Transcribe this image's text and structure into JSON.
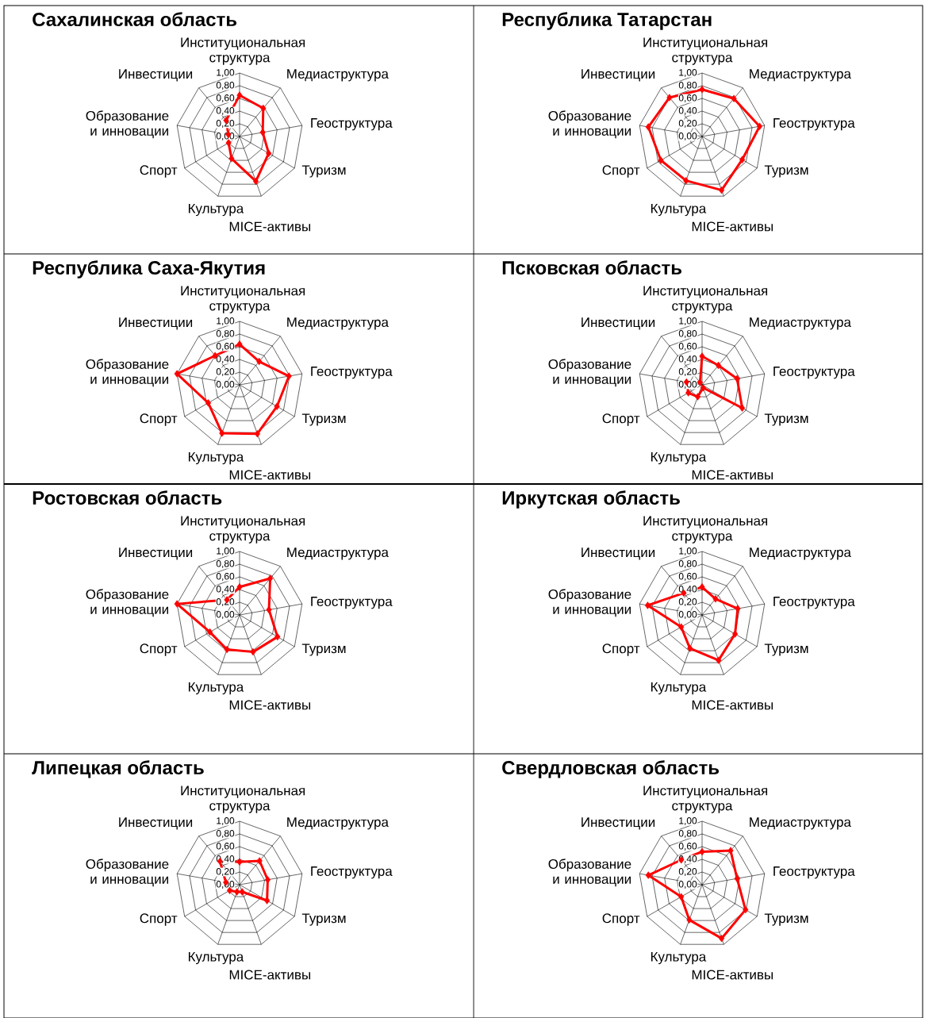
{
  "chart_data": [
    {
      "type": "radar",
      "title": "Сахалинская область",
      "categories": [
        "Институциональная структура",
        "Медиаструктура",
        "Геоструктура",
        "Туризм",
        "MICE-активы",
        "Культура",
        "Спорт",
        "Образование и инновации",
        "Инвестиции"
      ],
      "series": [
        {
          "color": "#ff0000",
          "values": [
            0.65,
            0.58,
            0.37,
            0.53,
            0.75,
            0.37,
            0.2,
            0.18,
            0.33
          ]
        }
      ],
      "ylim": [
        0,
        1
      ],
      "yticks": [
        {
          "value": 0,
          "label": "0,00"
        },
        {
          "value": 0.2,
          "label": "0,20"
        },
        {
          "value": 0.4,
          "label": "0,40"
        },
        {
          "value": 0.6,
          "label": "0,60"
        },
        {
          "value": 0.8,
          "label": "0,80"
        },
        {
          "value": 1,
          "label": "1,00"
        }
      ],
      "grid": true,
      "marker": "diamond"
    },
    {
      "type": "radar",
      "title": "Республика Татарстан",
      "categories": [
        "Институциональная структура",
        "Медиаструктура",
        "Геоструктура",
        "Туризм",
        "MICE-активы",
        "Культура",
        "Спорт",
        "Образование и инновации",
        "Инвестиции"
      ],
      "series": [
        {
          "color": "#ff0000",
          "values": [
            0.74,
            0.78,
            0.92,
            0.73,
            0.9,
            0.74,
            0.75,
            0.86,
            0.8
          ]
        }
      ],
      "ylim": [
        0,
        1
      ],
      "yticks": [
        {
          "value": 0,
          "label": "0,00"
        },
        {
          "value": 0.2,
          "label": "0,20"
        },
        {
          "value": 0.4,
          "label": "0,40"
        },
        {
          "value": 0.6,
          "label": "0,60"
        },
        {
          "value": 0.8,
          "label": "0,80"
        },
        {
          "value": 1,
          "label": "1,00"
        }
      ],
      "grid": true,
      "marker": "diamond"
    },
    {
      "type": "radar",
      "title": "Республика Саха-Якутия",
      "categories": [
        "Институциональная структура",
        "Медиаструктура",
        "Геоструктура",
        "Туризм",
        "MICE-активы",
        "Культура",
        "Спорт",
        "Образование и инновации",
        "Инвестиции"
      ],
      "series": [
        {
          "color": "#ff0000",
          "values": [
            0.64,
            0.48,
            0.79,
            0.68,
            0.82,
            0.81,
            0.57,
            1.0,
            0.6
          ]
        }
      ],
      "ylim": [
        0,
        1
      ],
      "yticks": [
        {
          "value": 0,
          "label": "0,00"
        },
        {
          "value": 0.2,
          "label": "0,20"
        },
        {
          "value": 0.4,
          "label": "0,40"
        },
        {
          "value": 0.6,
          "label": "0,60"
        },
        {
          "value": 0.8,
          "label": "0,80"
        },
        {
          "value": 1,
          "label": "1,00"
        }
      ],
      "grid": true,
      "marker": "diamond"
    },
    {
      "type": "radar",
      "title": "Псковская область",
      "categories": [
        "Институциональная структура",
        "Медиаструктура",
        "Геоструктура",
        "Туризм",
        "MICE-активы",
        "Культура",
        "Спорт",
        "Образование и инновации",
        "Инвестиции"
      ],
      "series": [
        {
          "color": "#ff0000",
          "values": [
            0.45,
            0.4,
            0.56,
            0.73,
            0.05,
            0.2,
            0.25,
            0.25,
            0.05
          ]
        }
      ],
      "ylim": [
        0,
        1
      ],
      "yticks": [
        {
          "value": 0,
          "label": "0,00"
        },
        {
          "value": 0.2,
          "label": "0,20"
        },
        {
          "value": 0.4,
          "label": "0,40"
        },
        {
          "value": 0.6,
          "label": "0,60"
        },
        {
          "value": 0.8,
          "label": "0,80"
        },
        {
          "value": 1,
          "label": "1,00"
        }
      ],
      "grid": true,
      "marker": "diamond"
    },
    {
      "type": "radar",
      "title": "Ростовская область",
      "categories": [
        "Институциональная структура",
        "Медиаструктура",
        "Геоструктура",
        "Туризм",
        "MICE-активы",
        "Культура",
        "Спорт",
        "Образование и инновации",
        "Инвестиции"
      ],
      "series": [
        {
          "color": "#ff0000",
          "values": [
            0.44,
            0.75,
            0.47,
            0.69,
            0.62,
            0.58,
            0.54,
            1.0,
            0.31
          ]
        }
      ],
      "ylim": [
        0,
        1
      ],
      "yticks": [
        {
          "value": 0,
          "label": "0,00"
        },
        {
          "value": 0.2,
          "label": "0,20"
        },
        {
          "value": 0.4,
          "label": "0,40"
        },
        {
          "value": 0.6,
          "label": "0,60"
        },
        {
          "value": 0.8,
          "label": "0,80"
        },
        {
          "value": 1,
          "label": "1,00"
        }
      ],
      "grid": true,
      "marker": "diamond"
    },
    {
      "type": "radar",
      "title": "Иркутская область",
      "categories": [
        "Институциональная структура",
        "Медиаструктура",
        "Геоструктура",
        "Туризм",
        "MICE-активы",
        "Культура",
        "Спорт",
        "Образование и инновации",
        "Инвестиции"
      ],
      "series": [
        {
          "color": "#ff0000",
          "values": [
            0.44,
            0.33,
            0.57,
            0.6,
            0.76,
            0.56,
            0.38,
            0.87,
            0.45
          ]
        }
      ],
      "ylim": [
        0,
        1
      ],
      "yticks": [
        {
          "value": 0,
          "label": "0,00"
        },
        {
          "value": 0.2,
          "label": "0,20"
        },
        {
          "value": 0.4,
          "label": "0,40"
        },
        {
          "value": 0.6,
          "label": "0,60"
        },
        {
          "value": 0.8,
          "label": "0,80"
        },
        {
          "value": 1,
          "label": "1,00"
        }
      ],
      "grid": true,
      "marker": "diamond"
    },
    {
      "type": "radar",
      "title": "Липецкая область",
      "categories": [
        "Институциональная структура",
        "Медиаструктура",
        "Геоструктура",
        "Туризм",
        "MICE-активы",
        "Культура",
        "Спорт",
        "Образование и инновации",
        "Инвестиции"
      ],
      "series": [
        {
          "color": "#ff0000",
          "values": [
            0.36,
            0.49,
            0.45,
            0.5,
            0.12,
            0.12,
            0.18,
            0.22,
            0.48
          ]
        }
      ],
      "ylim": [
        0,
        1
      ],
      "yticks": [
        {
          "value": 0,
          "label": "0,00"
        },
        {
          "value": 0.2,
          "label": "0,20"
        },
        {
          "value": 0.4,
          "label": "0,40"
        },
        {
          "value": 0.6,
          "label": "0,60"
        },
        {
          "value": 0.8,
          "label": "0,80"
        },
        {
          "value": 1,
          "label": "1,00"
        }
      ],
      "grid": true,
      "marker": "diamond"
    },
    {
      "type": "radar",
      "title": "Свердловская область",
      "categories": [
        "Институциональная структура",
        "Медиаструктура",
        "Геоструктура",
        "Туризм",
        "MICE-активы",
        "Культура",
        "Спорт",
        "Образование и инновации",
        "Инвестиции"
      ],
      "series": [
        {
          "color": "#ff0000",
          "values": [
            0.52,
            0.7,
            0.56,
            0.79,
            0.9,
            0.59,
            0.38,
            0.86,
            0.51
          ]
        }
      ],
      "ylim": [
        0,
        1
      ],
      "yticks": [
        {
          "value": 0,
          "label": "0,00"
        },
        {
          "value": 0.2,
          "label": "0,20"
        },
        {
          "value": 0.4,
          "label": "0,40"
        },
        {
          "value": 0.6,
          "label": "0,60"
        },
        {
          "value": 0.8,
          "label": "0,80"
        },
        {
          "value": 1,
          "label": "1,00"
        }
      ],
      "grid": true,
      "marker": "diamond"
    }
  ]
}
